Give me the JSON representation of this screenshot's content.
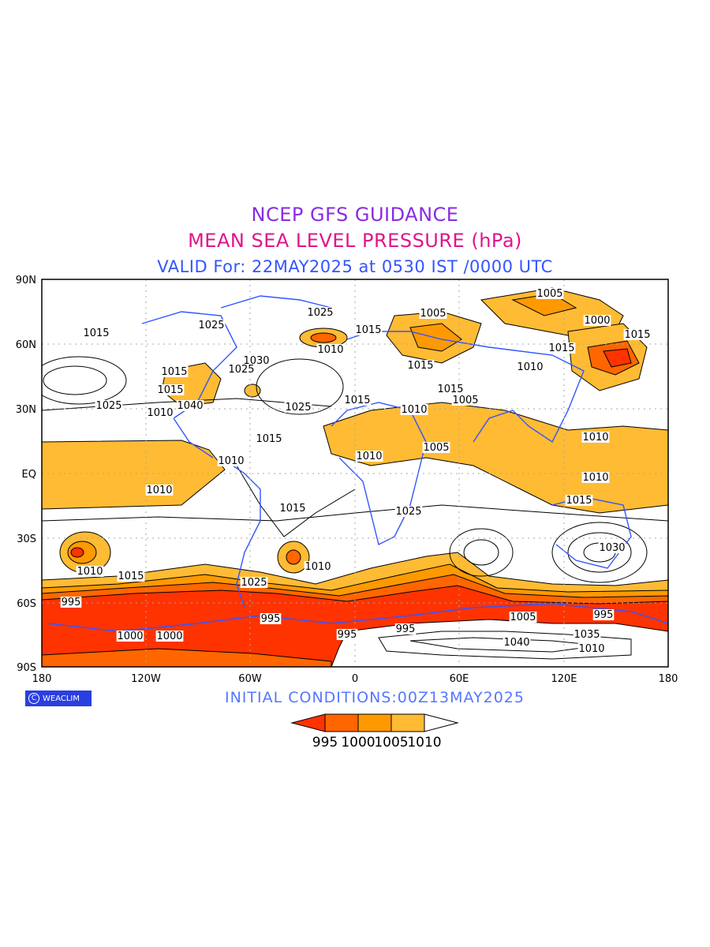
{
  "header": {
    "line1": "NCEP GFS GUIDANCE",
    "line2": "MEAN SEA LEVEL PRESSURE (hPa)",
    "line3": "VALID For: 22MAY2025 at 0530 IST /0000 UTC"
  },
  "axes": {
    "lat_labels": [
      "90N",
      "60N",
      "30N",
      "EQ",
      "30S",
      "60S",
      "90S"
    ],
    "lon_labels": [
      "180",
      "120W",
      "60W",
      "0",
      "60E",
      "120E",
      "180"
    ]
  },
  "contour_labels": [
    "1025",
    "1005",
    "1005",
    "1000",
    "1015",
    "1015",
    "1025",
    "1015",
    "1010",
    "1030",
    "1025",
    "1010",
    "1040",
    "1015",
    "1015",
    "1015",
    "1010",
    "1005",
    "1015",
    "1025",
    "1015",
    "1010",
    "1010",
    "1005",
    "1015",
    "1010",
    "1010",
    "1010",
    "1010",
    "1015",
    "1025",
    "1015",
    "1030",
    "1010",
    "1015",
    "1015",
    "1010",
    "1025",
    "1025",
    "995",
    "995",
    "995",
    "995",
    "1000",
    "1005",
    "995",
    "1000",
    "1040",
    "1035",
    "1010"
  ],
  "branding": {
    "logo_glyph": "C",
    "name": "WEACLIM"
  },
  "footer": {
    "initial": "INITIAL CONDITIONS:00Z13MAY2025"
  },
  "colorbar": {
    "colors": [
      "#ff3300",
      "#ff6600",
      "#ff9900",
      "#ffbb33",
      "#ffffff"
    ],
    "labels": [
      "995",
      "1000",
      "1005",
      "1010"
    ]
  }
}
